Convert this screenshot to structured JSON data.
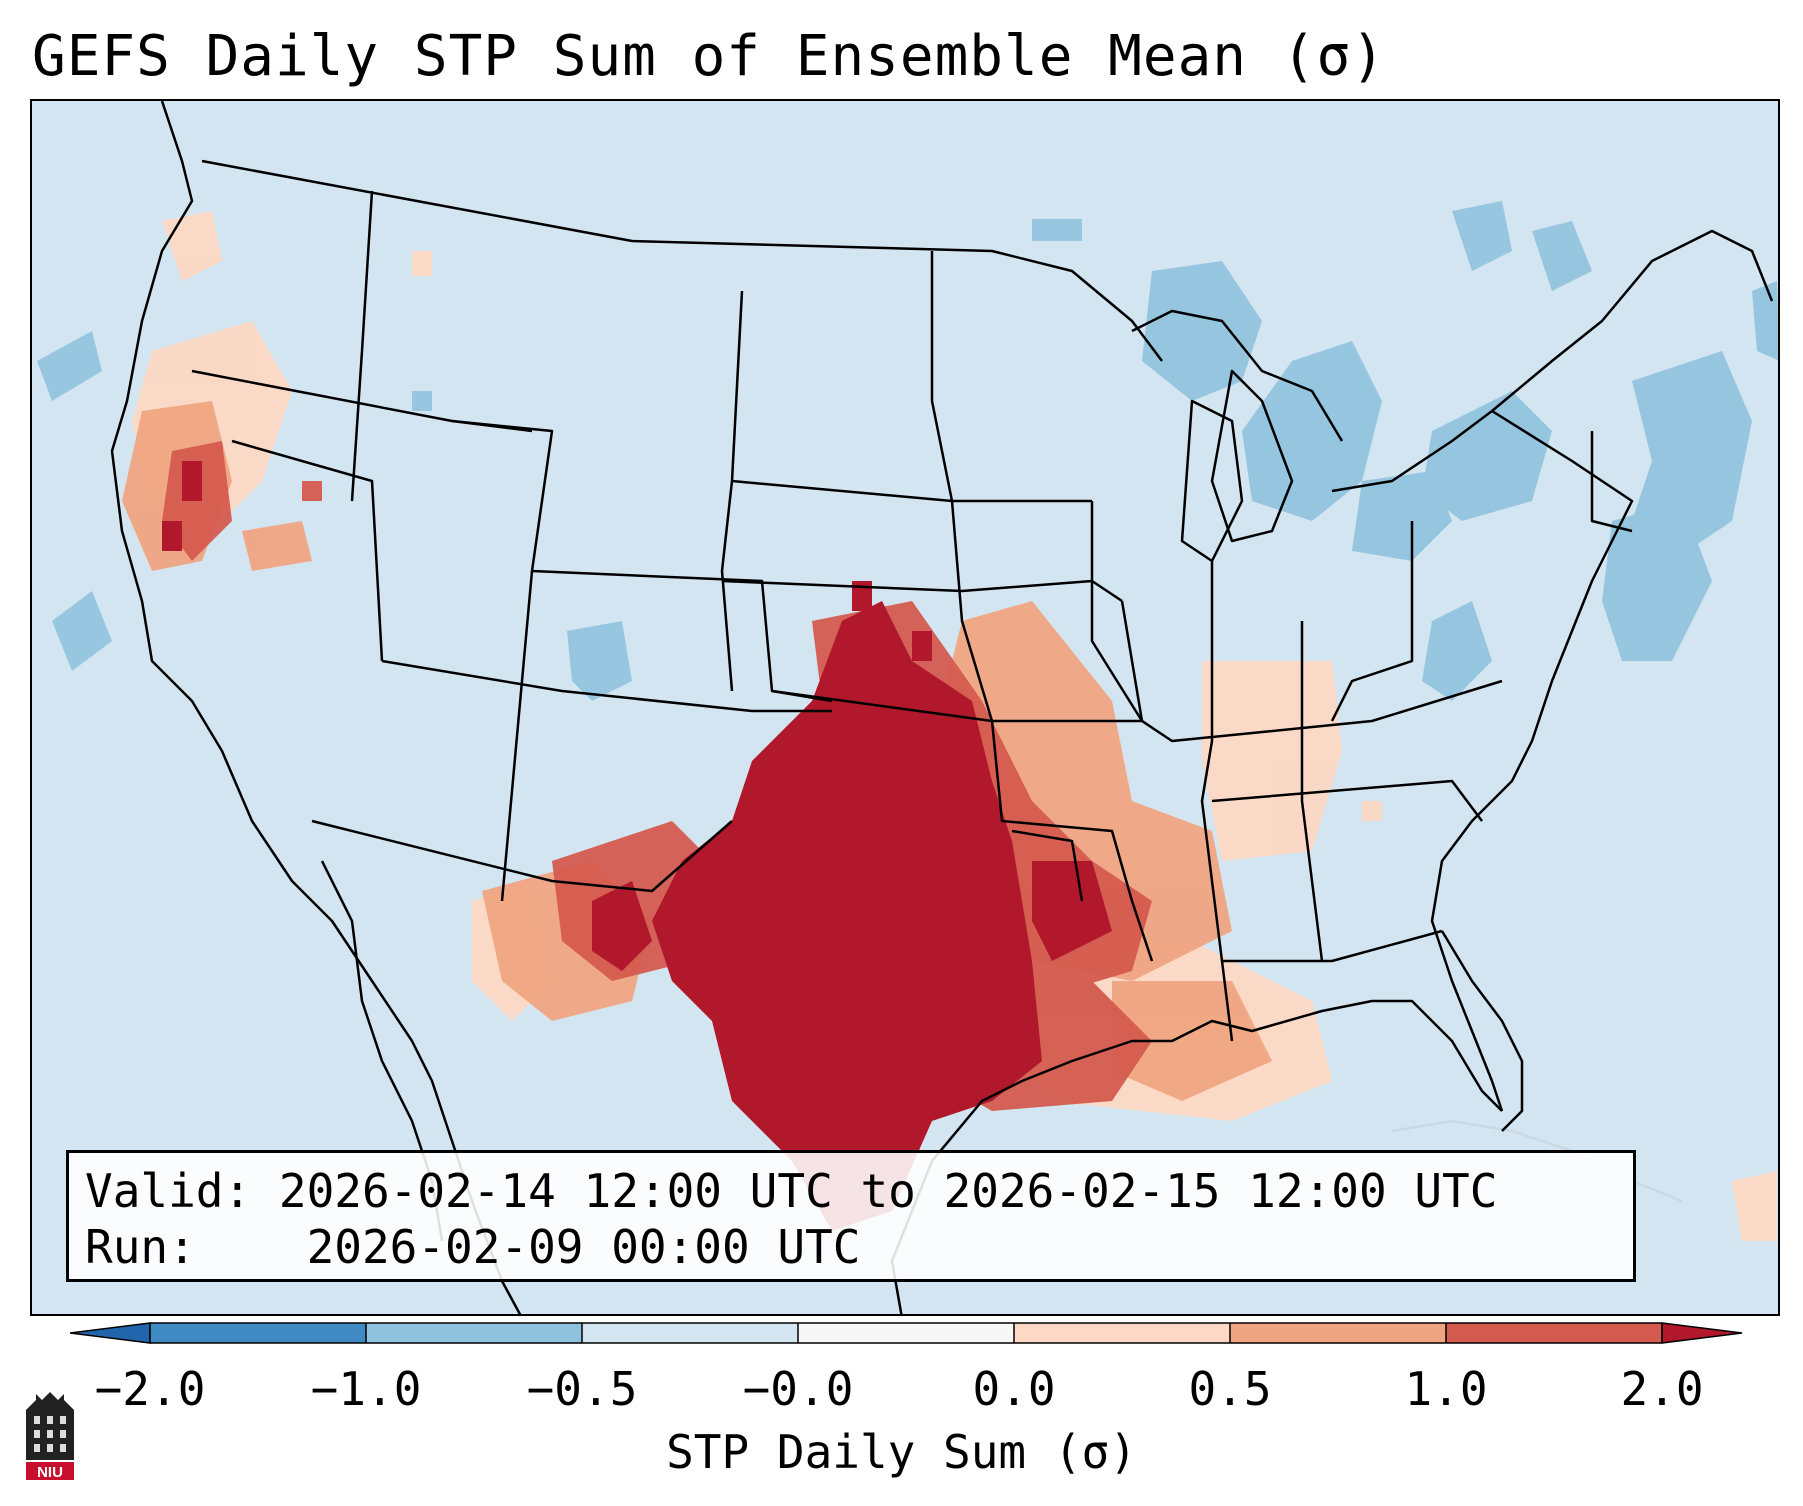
{
  "title": "GEFS Daily STP Sum of Ensemble Mean (σ)",
  "info": {
    "valid_label": "Valid:",
    "valid_value": "2026-02-14 12:00 UTC to 2026-02-15 12:00 UTC",
    "run_label": "Run:",
    "run_value": "2026-02-09 00:00 UTC"
  },
  "colorbar": {
    "label": "STP Daily Sum (σ)",
    "ticks": [
      "−2.0",
      "−1.0",
      "−0.5",
      "−0.0",
      "0.0",
      "0.5",
      "1.0",
      "2.0"
    ],
    "bin_colors": [
      "#3f8ac2",
      "#90c2de",
      "#d3e5f0",
      "#f7f7f7",
      "#fdd8c4",
      "#f0a582",
      "#d45b4f",
      "#b2182b"
    ],
    "extend_min_color": "#2166ac",
    "extend_max_color": "#b2182b"
  },
  "map": {
    "ocean_color": "#d3e5f0",
    "region": "Continental United States",
    "highlight": "Southern Plains and Gulf Coast maximum"
  },
  "logo": {
    "text": "NIU",
    "icon": "niu-logo-icon"
  }
}
